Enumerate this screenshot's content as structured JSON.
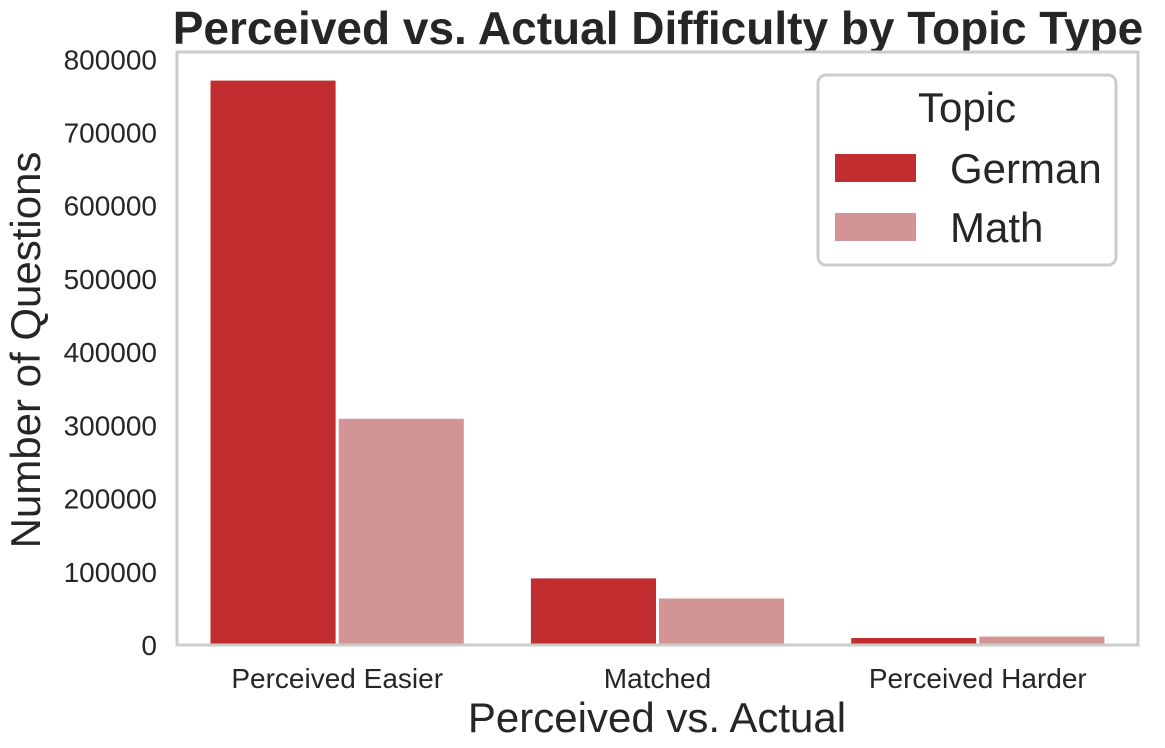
{
  "chart_data": {
    "type": "bar",
    "title": "Perceived vs. Actual Difficulty by Topic Type",
    "xlabel": "Perceived vs. Actual",
    "ylabel": "Number of Questions",
    "categories": [
      "Perceived Easier",
      "Matched",
      "Perceived Harder"
    ],
    "series": [
      {
        "name": "German",
        "color": "#c22d2f",
        "values": [
          771000,
          91000,
          9500
        ]
      },
      {
        "name": "Math",
        "color": "#d39495",
        "values": [
          309000,
          63500,
          11500
        ]
      }
    ],
    "ylim": [
      0,
      810000
    ],
    "yticks": [
      0,
      100000,
      200000,
      300000,
      400000,
      500000,
      600000,
      700000,
      800000
    ],
    "grid": false,
    "legend": {
      "title": "Topic",
      "placement": "top-right"
    }
  }
}
